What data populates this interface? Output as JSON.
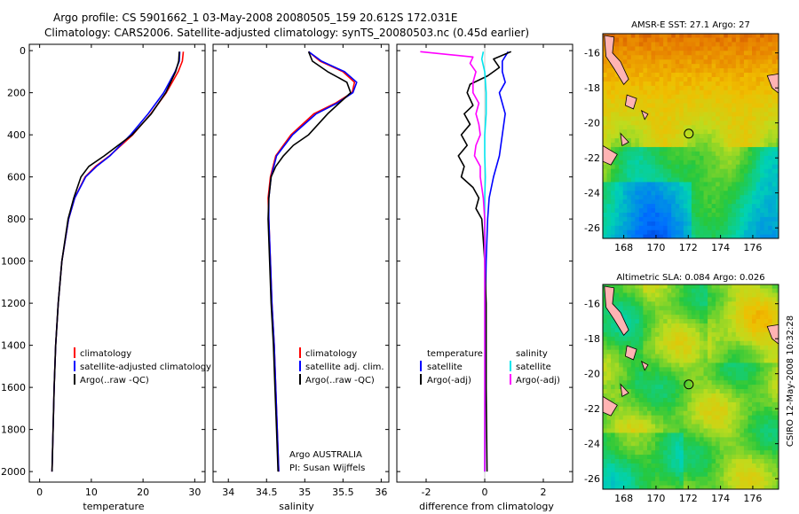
{
  "figure": {
    "title_line1": "Argo profile: CS 5901662_1 03-May-2008 20080505_159 20.612S 172.031E",
    "title_line2": "Climatology: CARS2006. Satellite-adjusted climatology: synTS_20080503.nc (0.45d earlier)",
    "side_stamp": "CSIRO 12-May-2008 10:32:28",
    "credit_line1": "Argo AUSTRALIA",
    "credit_line2": "PI: Susan Wijffels"
  },
  "colors": {
    "climatology": "#ff0000",
    "satellite": "#0000ff",
    "argo": "#000000",
    "satellite_diff_salinity": "#00e5ee",
    "argo_diff_salinity": "#ff00ff",
    "land": "#ffb3b3"
  },
  "chart_data": [
    {
      "type": "line",
      "xlabel": "temperature",
      "ylabel": "",
      "xlim": [
        -2,
        32
      ],
      "ylim": [
        2050,
        -30
      ],
      "xticks": [
        0,
        10,
        20,
        30
      ],
      "yticks": [
        0,
        200,
        400,
        600,
        800,
        1000,
        1200,
        1400,
        1600,
        1800,
        2000
      ],
      "legend": [
        "climatology",
        "satellite-adjusted climatology",
        "Argo(..raw -QC)"
      ],
      "series": [
        {
          "name": "climatology",
          "color": "#ff0000",
          "depth": [
            5,
            50,
            100,
            200,
            300,
            400,
            500,
            550,
            600,
            700,
            800,
            1000,
            1200,
            1400,
            1600,
            1800,
            2000
          ],
          "values": [
            27.8,
            27.6,
            26.8,
            24.5,
            21.5,
            18.0,
            13.5,
            10.8,
            8.8,
            6.8,
            5.6,
            4.3,
            3.6,
            3.1,
            2.8,
            2.6,
            2.4
          ]
        },
        {
          "name": "satellite-adjusted climatology",
          "color": "#0000ff",
          "depth": [
            5,
            50,
            100,
            200,
            300,
            400,
            500,
            550,
            600,
            700,
            800,
            1000,
            1200,
            1400,
            1600,
            1800,
            2000
          ],
          "values": [
            27.1,
            27.0,
            26.2,
            24.0,
            21.0,
            17.6,
            13.6,
            11.0,
            8.9,
            6.8,
            5.6,
            4.3,
            3.6,
            3.1,
            2.8,
            2.6,
            2.4
          ]
        },
        {
          "name": "Argo(..raw -QC)",
          "color": "#000000",
          "depth": [
            5,
            50,
            100,
            200,
            300,
            400,
            500,
            550,
            600,
            700,
            800,
            1000,
            1200,
            1400,
            1600,
            1800,
            2000
          ],
          "values": [
            27.0,
            26.9,
            26.3,
            24.4,
            21.6,
            17.9,
            12.5,
            9.5,
            8.0,
            6.6,
            5.5,
            4.3,
            3.6,
            3.1,
            2.8,
            2.6,
            2.4
          ]
        }
      ]
    },
    {
      "type": "line",
      "xlabel": "salinity",
      "ylabel": "",
      "xlim": [
        33.8,
        36.1
      ],
      "ylim": [
        2050,
        -30
      ],
      "xticks": [
        34,
        34.5,
        35,
        35.5,
        36
      ],
      "legend": [
        "climatology",
        "satellite adj. clim.",
        "Argo(..raw -QC)"
      ],
      "series": [
        {
          "name": "climatology",
          "color": "#ff0000",
          "depth": [
            5,
            50,
            100,
            150,
            200,
            250,
            300,
            400,
            500,
            600,
            700,
            800,
            1000,
            1200,
            1400,
            1600,
            1800,
            2000
          ],
          "values": [
            35.05,
            35.2,
            35.5,
            35.65,
            35.62,
            35.4,
            35.12,
            34.82,
            34.62,
            34.55,
            34.52,
            34.53,
            34.55,
            34.57,
            34.6,
            34.62,
            34.64,
            34.66
          ]
        },
        {
          "name": "satellite adj. clim.",
          "color": "#0000ff",
          "depth": [
            5,
            50,
            100,
            150,
            200,
            250,
            300,
            400,
            500,
            600,
            700,
            800,
            1000,
            1200,
            1400,
            1600,
            1800,
            2000
          ],
          "values": [
            35.05,
            35.22,
            35.52,
            35.68,
            35.63,
            35.42,
            35.15,
            34.84,
            34.63,
            34.56,
            34.53,
            34.53,
            34.55,
            34.57,
            34.6,
            34.62,
            34.64,
            34.66
          ]
        },
        {
          "name": "Argo(..raw -QC)",
          "color": "#000000",
          "depth": [
            5,
            50,
            100,
            150,
            200,
            250,
            300,
            400,
            450,
            500,
            550,
            600,
            700,
            800,
            1000,
            1200,
            1400,
            1600,
            1800,
            2000
          ],
          "values": [
            35.05,
            35.1,
            35.3,
            35.55,
            35.6,
            35.45,
            35.3,
            35.05,
            34.85,
            34.72,
            34.62,
            34.56,
            34.53,
            34.52,
            34.54,
            34.56,
            34.59,
            34.61,
            34.63,
            34.65
          ]
        }
      ]
    },
    {
      "type": "line",
      "xlabel": "difference from climatology",
      "ylabel": "",
      "xlim": [
        -3,
        3
      ],
      "ylim": [
        2050,
        -30
      ],
      "xticks": [
        -2,
        0,
        2
      ],
      "legend_temperature": [
        "temperature",
        "satellite",
        "Argo(-adj)"
      ],
      "legend_salinity": [
        "salinity",
        "satellite",
        "Argo(-adj)"
      ],
      "series": [
        {
          "name": "satellite",
          "group": "temperature",
          "color": "#0000ff",
          "depth": [
            5,
            50,
            100,
            150,
            200,
            300,
            400,
            500,
            600,
            700,
            800,
            1000,
            1200,
            1600,
            2000
          ],
          "values": [
            0.8,
            0.6,
            0.6,
            0.7,
            0.5,
            0.7,
            0.6,
            0.5,
            0.3,
            0.15,
            0.1,
            0.05,
            0.02,
            0.01,
            0.0
          ]
        },
        {
          "name": "Argo(-adj)",
          "group": "temperature",
          "color": "#000000",
          "depth": [
            5,
            40,
            80,
            120,
            160,
            200,
            260,
            300,
            350,
            400,
            450,
            500,
            550,
            600,
            650,
            700,
            750,
            800,
            900,
            1000,
            1200,
            1600,
            2000
          ],
          "values": [
            0.9,
            0.3,
            0.5,
            0.1,
            -0.5,
            -0.6,
            -0.4,
            -0.7,
            -0.5,
            -0.8,
            -0.6,
            -0.9,
            -0.7,
            -0.8,
            -0.4,
            -0.2,
            -0.3,
            -0.1,
            -0.05,
            0.0,
            0.05,
            0.05,
            0.08
          ]
        },
        {
          "name": "satellite",
          "group": "salinity",
          "color": "#00e5ee",
          "depth": [
            5,
            40,
            100,
            200,
            300,
            400,
            500,
            600,
            700,
            800,
            1000,
            1200,
            1600,
            2000
          ],
          "values": [
            -0.05,
            -0.1,
            0.0,
            0.05,
            0.05,
            0.0,
            0.0,
            0.02,
            0.0,
            0.0,
            0.0,
            0.0,
            0.0,
            0.0
          ]
        },
        {
          "name": "Argo(-adj)",
          "group": "salinity",
          "color": "#ff00ff",
          "depth": [
            5,
            30,
            60,
            100,
            150,
            200,
            250,
            300,
            350,
            400,
            450,
            500,
            550,
            600,
            650,
            700,
            800,
            1000,
            1200,
            1600,
            2000
          ],
          "values": [
            -2.2,
            -0.4,
            -0.5,
            -0.3,
            -0.4,
            -0.4,
            -0.2,
            -0.3,
            -0.2,
            -0.15,
            -0.3,
            -0.35,
            -0.15,
            -0.15,
            -0.1,
            -0.05,
            0.0,
            0.0,
            0.0,
            0.0,
            0.0
          ]
        }
      ]
    },
    {
      "type": "heatmap",
      "title": "AMSR-E SST: 27.1  Argo: 27",
      "xlim": [
        166.7,
        177.6
      ],
      "ylim": [
        -26.6,
        -14.9
      ],
      "xticks": [
        168,
        170,
        172,
        174,
        176
      ],
      "yticks": [
        -16,
        -18,
        -20,
        -22,
        -24,
        -26
      ],
      "profile_location": {
        "lon": 172.031,
        "lat": -20.612
      }
    },
    {
      "type": "heatmap",
      "title": "Altimetric SLA: 0.084  Argo: 0.026",
      "xlim": [
        166.7,
        177.6
      ],
      "ylim": [
        -26.6,
        -14.9
      ],
      "xticks": [
        168,
        170,
        172,
        174,
        176
      ],
      "yticks": [
        -16,
        -18,
        -20,
        -22,
        -24,
        -26
      ],
      "profile_location": {
        "lon": 172.031,
        "lat": -20.612
      }
    }
  ]
}
